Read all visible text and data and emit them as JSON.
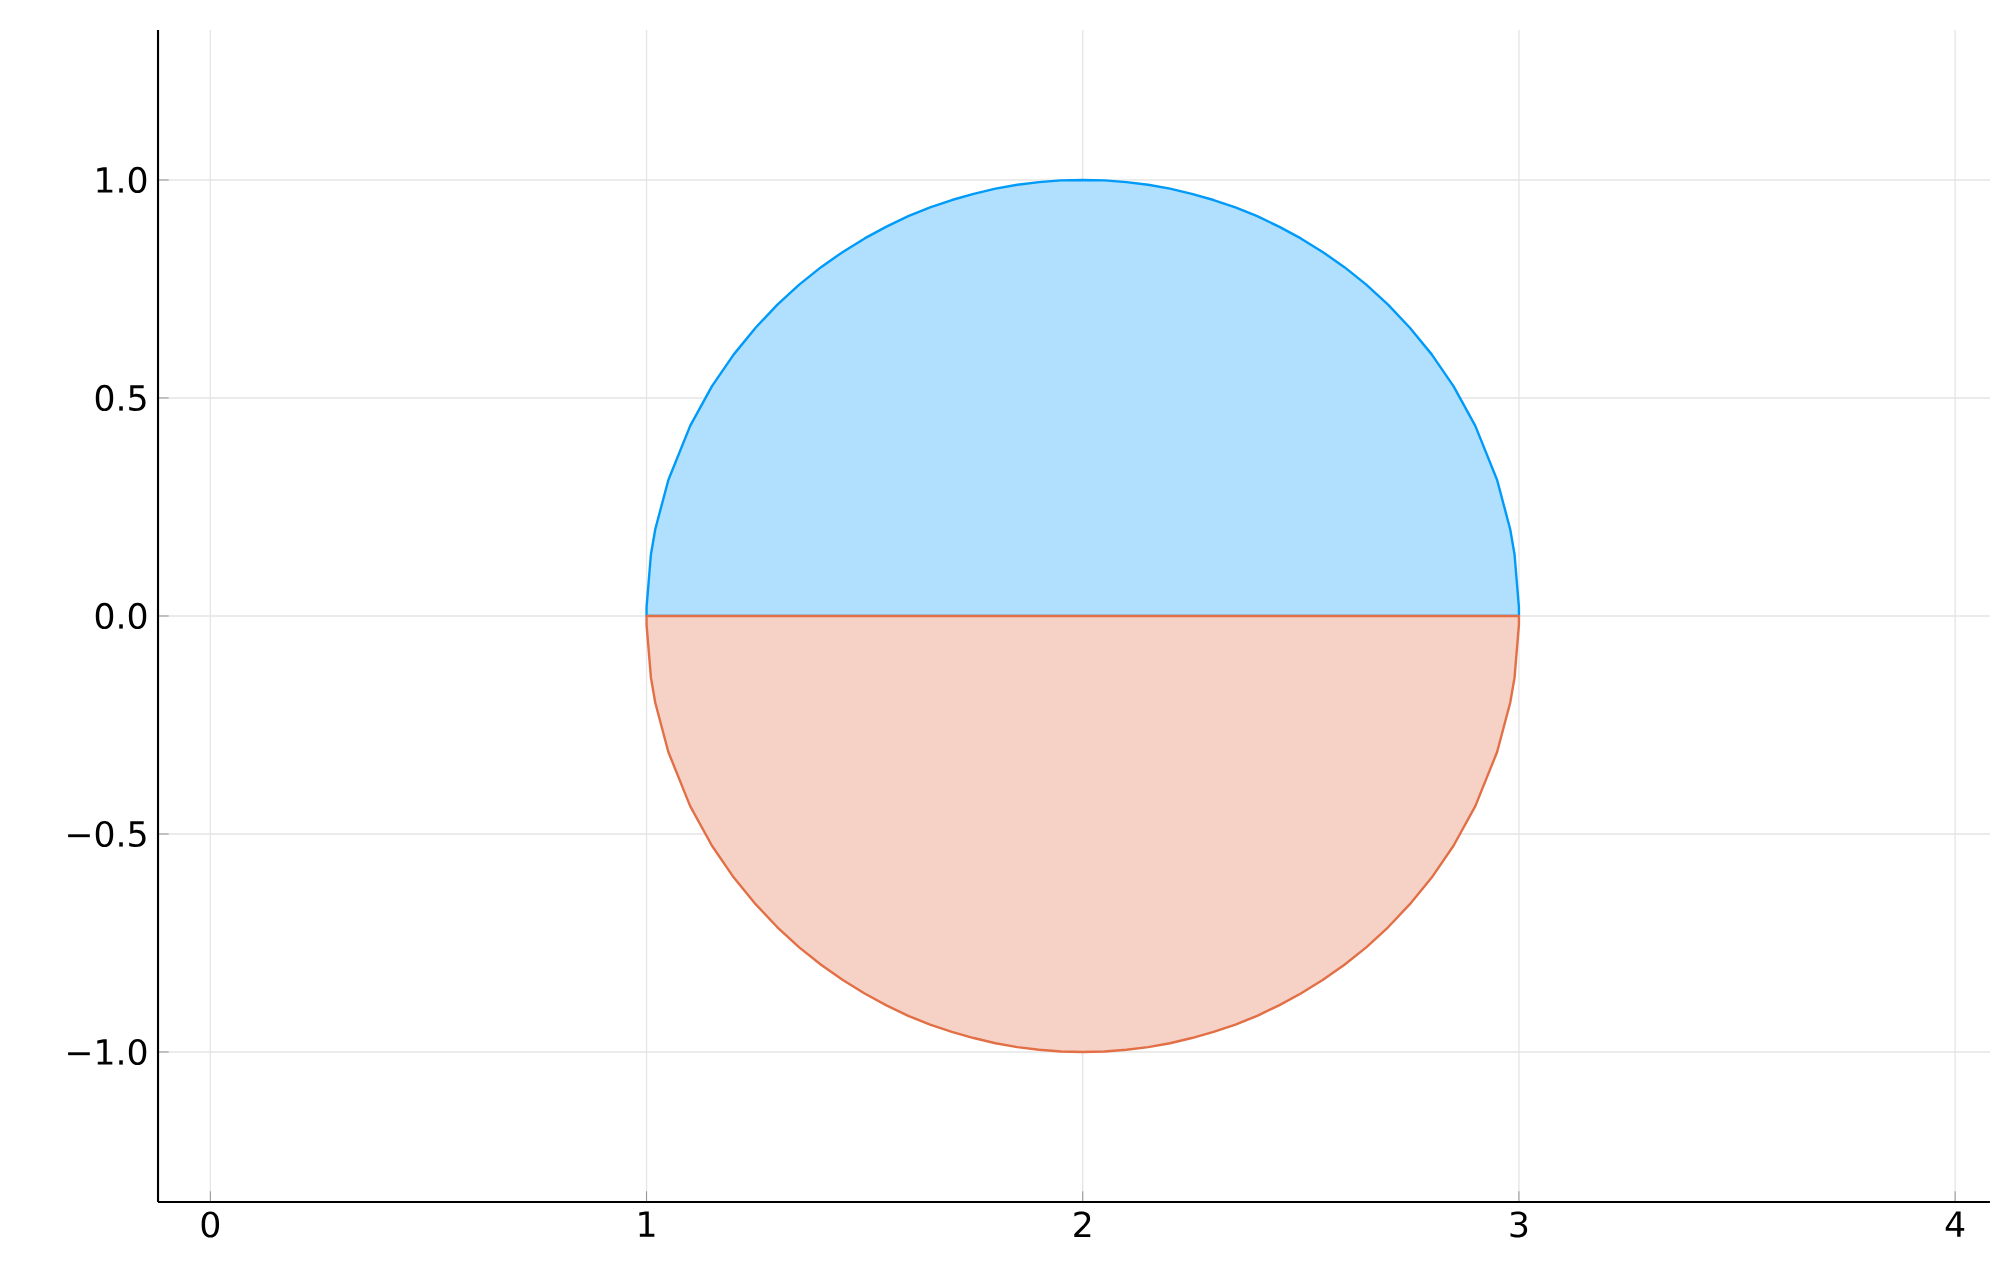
{
  "chart_data": {
    "type": "area",
    "xlim": [
      -0.12,
      4.08
    ],
    "ylim": [
      -1.344,
      1.344
    ],
    "xticks": [
      0,
      1,
      2,
      3,
      4
    ],
    "yticks": [
      {
        "value": -1,
        "label": "−1.0"
      },
      {
        "value": -0.5,
        "label": "−0.5"
      },
      {
        "value": 0,
        "label": "0.0"
      },
      {
        "value": 0.5,
        "label": "0.5"
      },
      {
        "value": 1,
        "label": "1.0"
      }
    ],
    "grid": true,
    "series": [
      {
        "color": "#009af9",
        "x": [
          1,
          1.01,
          1.02,
          1.05,
          1.1,
          1.15,
          1.2,
          1.25,
          1.3,
          1.35,
          1.4,
          1.45,
          1.5,
          1.55,
          1.6,
          1.65,
          1.7,
          1.75,
          1.8,
          1.85,
          1.9,
          1.95,
          2,
          2.05,
          2.1,
          2.15,
          2.2,
          2.25,
          2.3,
          2.35,
          2.4,
          2.45,
          2.5,
          2.55,
          2.6,
          2.65,
          2.7,
          2.75,
          2.8,
          2.85,
          2.9,
          2.95,
          2.98,
          2.99,
          3
        ],
        "values": [
          0.02,
          0.141,
          0.199,
          0.312,
          0.436,
          0.527,
          0.6,
          0.661,
          0.714,
          0.76,
          0.8,
          0.835,
          0.866,
          0.893,
          0.917,
          0.937,
          0.954,
          0.968,
          0.98,
          0.989,
          0.995,
          0.999,
          1,
          0.999,
          0.995,
          0.989,
          0.98,
          0.968,
          0.954,
          0.937,
          0.917,
          0.893,
          0.866,
          0.835,
          0.8,
          0.76,
          0.714,
          0.661,
          0.6,
          0.527,
          0.436,
          0.312,
          0.199,
          0.141,
          0.02
        ]
      },
      {
        "color": "#e26f46",
        "x": [
          1,
          1.01,
          1.02,
          1.05,
          1.1,
          1.15,
          1.2,
          1.25,
          1.3,
          1.35,
          1.4,
          1.45,
          1.5,
          1.55,
          1.6,
          1.65,
          1.7,
          1.75,
          1.8,
          1.85,
          1.9,
          1.95,
          2,
          2.05,
          2.1,
          2.15,
          2.2,
          2.25,
          2.3,
          2.35,
          2.4,
          2.45,
          2.5,
          2.55,
          2.6,
          2.65,
          2.7,
          2.75,
          2.8,
          2.85,
          2.9,
          2.95,
          2.98,
          2.99,
          3
        ],
        "values": [
          -0.02,
          -0.141,
          -0.199,
          -0.312,
          -0.436,
          -0.527,
          -0.6,
          -0.661,
          -0.714,
          -0.76,
          -0.8,
          -0.835,
          -0.866,
          -0.893,
          -0.917,
          -0.937,
          -0.954,
          -0.968,
          -0.98,
          -0.989,
          -0.995,
          -0.999,
          -1,
          -0.999,
          -0.995,
          -0.989,
          -0.98,
          -0.968,
          -0.954,
          -0.937,
          -0.917,
          -0.893,
          -0.866,
          -0.835,
          -0.8,
          -0.76,
          -0.714,
          -0.661,
          -0.6,
          -0.527,
          -0.436,
          -0.312,
          -0.199,
          -0.141,
          -0.02
        ]
      }
    ]
  }
}
